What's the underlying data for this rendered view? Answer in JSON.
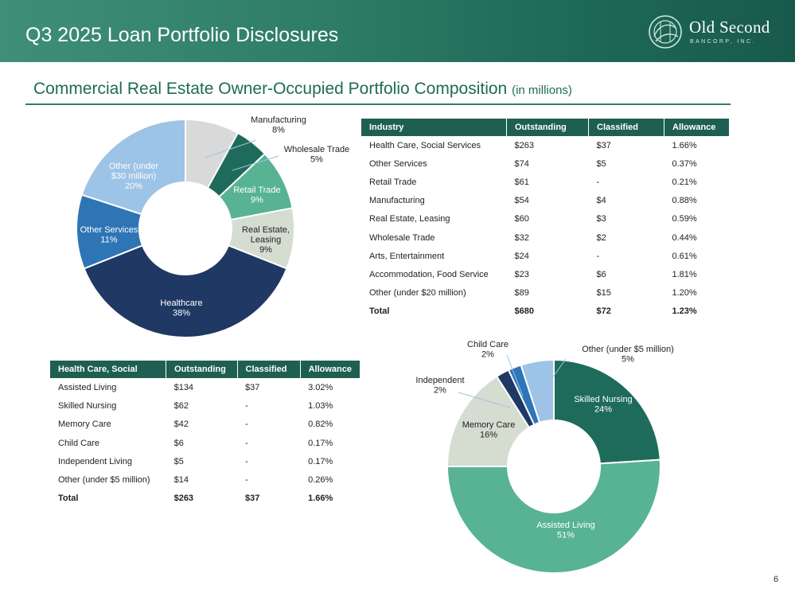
{
  "header": {
    "title": "Q3 2025 Loan Portfolio Disclosures",
    "logo_name": "Old Second",
    "logo_sub": "BANCORP, INC."
  },
  "section": {
    "title": "Commercial Real Estate Owner-Occupied Portfolio Composition",
    "unit": "(in millions)"
  },
  "page_number": "6",
  "industry_table": {
    "headers": [
      "Industry",
      "Outstanding",
      "Classified",
      "Allowance"
    ],
    "rows": [
      [
        "Health Care, Social Services",
        "$263",
        "$37",
        "1.66%"
      ],
      [
        "Other Services",
        "$74",
        "$5",
        "0.37%"
      ],
      [
        "Retail Trade",
        "$61",
        "-",
        "0.21%"
      ],
      [
        "Manufacturing",
        "$54",
        "$4",
        "0.88%"
      ],
      [
        "Real Estate, Leasing",
        "$60",
        "$3",
        "0.59%"
      ],
      [
        "Wholesale Trade",
        "$32",
        "$2",
        "0.44%"
      ],
      [
        "Arts, Entertainment",
        "$24",
        "-",
        "0.61%"
      ],
      [
        "Accommodation, Food Service",
        "$23",
        "$6",
        "1.81%"
      ],
      [
        "Other (under $20 million)",
        "$89",
        "$15",
        "1.20%"
      ]
    ],
    "total": [
      "Total",
      "$680",
      "$72",
      "1.23%"
    ]
  },
  "health_table": {
    "headers": [
      "Health Care, Social",
      "Outstanding",
      "Classified",
      "Allowance"
    ],
    "rows": [
      [
        "Assisted Living",
        "$134",
        "$37",
        "3.02%"
      ],
      [
        "Skilled Nursing",
        "$62",
        "-",
        "1.03%"
      ],
      [
        "Memory Care",
        "$42",
        "-",
        "0.82%"
      ],
      [
        "Child Care",
        "$6",
        "-",
        "0.17%"
      ],
      [
        "Independent Living",
        "$5",
        "-",
        "0.17%"
      ],
      [
        "Other (under $5 million)",
        "$14",
        "-",
        "0.26%"
      ]
    ],
    "total": [
      "Total",
      "$263",
      "$37",
      "1.66%"
    ]
  },
  "chart_data": [
    {
      "type": "pie",
      "title": "",
      "donut": true,
      "slices": [
        {
          "label": "Manufacturing",
          "pct_label": "8%",
          "value": 8,
          "color": "#d9d9d9",
          "text_color": "#222222"
        },
        {
          "label": "Wholesale Trade",
          "pct_label": "5%",
          "value": 5,
          "color": "#1e6b5c",
          "text_color": "#222222"
        },
        {
          "label": "Retail Trade",
          "pct_label": "9%",
          "value": 9,
          "color": "#57b394",
          "text_color": "#ffffff"
        },
        {
          "label": "Real Estate, Leasing",
          "pct_label": "9%",
          "value": 9,
          "color": "#d5dcd0",
          "text_color": "#222222"
        },
        {
          "label": "Healthcare",
          "pct_label": "38%",
          "value": 38,
          "color": "#1f3864",
          "text_color": "#ffffff"
        },
        {
          "label": "Other Services",
          "pct_label": "11%",
          "value": 11,
          "color": "#2e75b6",
          "text_color": "#ffffff"
        },
        {
          "label": "Other (under $30 million)",
          "pct_label": "20%",
          "value": 20,
          "color": "#9dc3e6",
          "text_color": "#ffffff"
        }
      ]
    },
    {
      "type": "pie",
      "title": "",
      "donut": true,
      "slices": [
        {
          "label": "Skilled Nursing",
          "pct_label": "24%",
          "value": 24,
          "color": "#1e6b5c",
          "text_color": "#ffffff"
        },
        {
          "label": "Assisted Living",
          "pct_label": "51%",
          "value": 51,
          "color": "#57b394",
          "text_color": "#ffffff"
        },
        {
          "label": "Memory Care",
          "pct_label": "16%",
          "value": 16,
          "color": "#d5dcd0",
          "text_color": "#222222"
        },
        {
          "label": "Independent",
          "pct_label": "2%",
          "value": 2,
          "color": "#1f3864",
          "text_color": "#222222"
        },
        {
          "label": "Child Care",
          "pct_label": "2%",
          "value": 2,
          "color": "#2e75b6",
          "text_color": "#222222"
        },
        {
          "label": "Other (under $5 million)",
          "pct_label": "5%",
          "value": 5,
          "color": "#9dc3e6",
          "text_color": "#222222"
        }
      ]
    }
  ]
}
